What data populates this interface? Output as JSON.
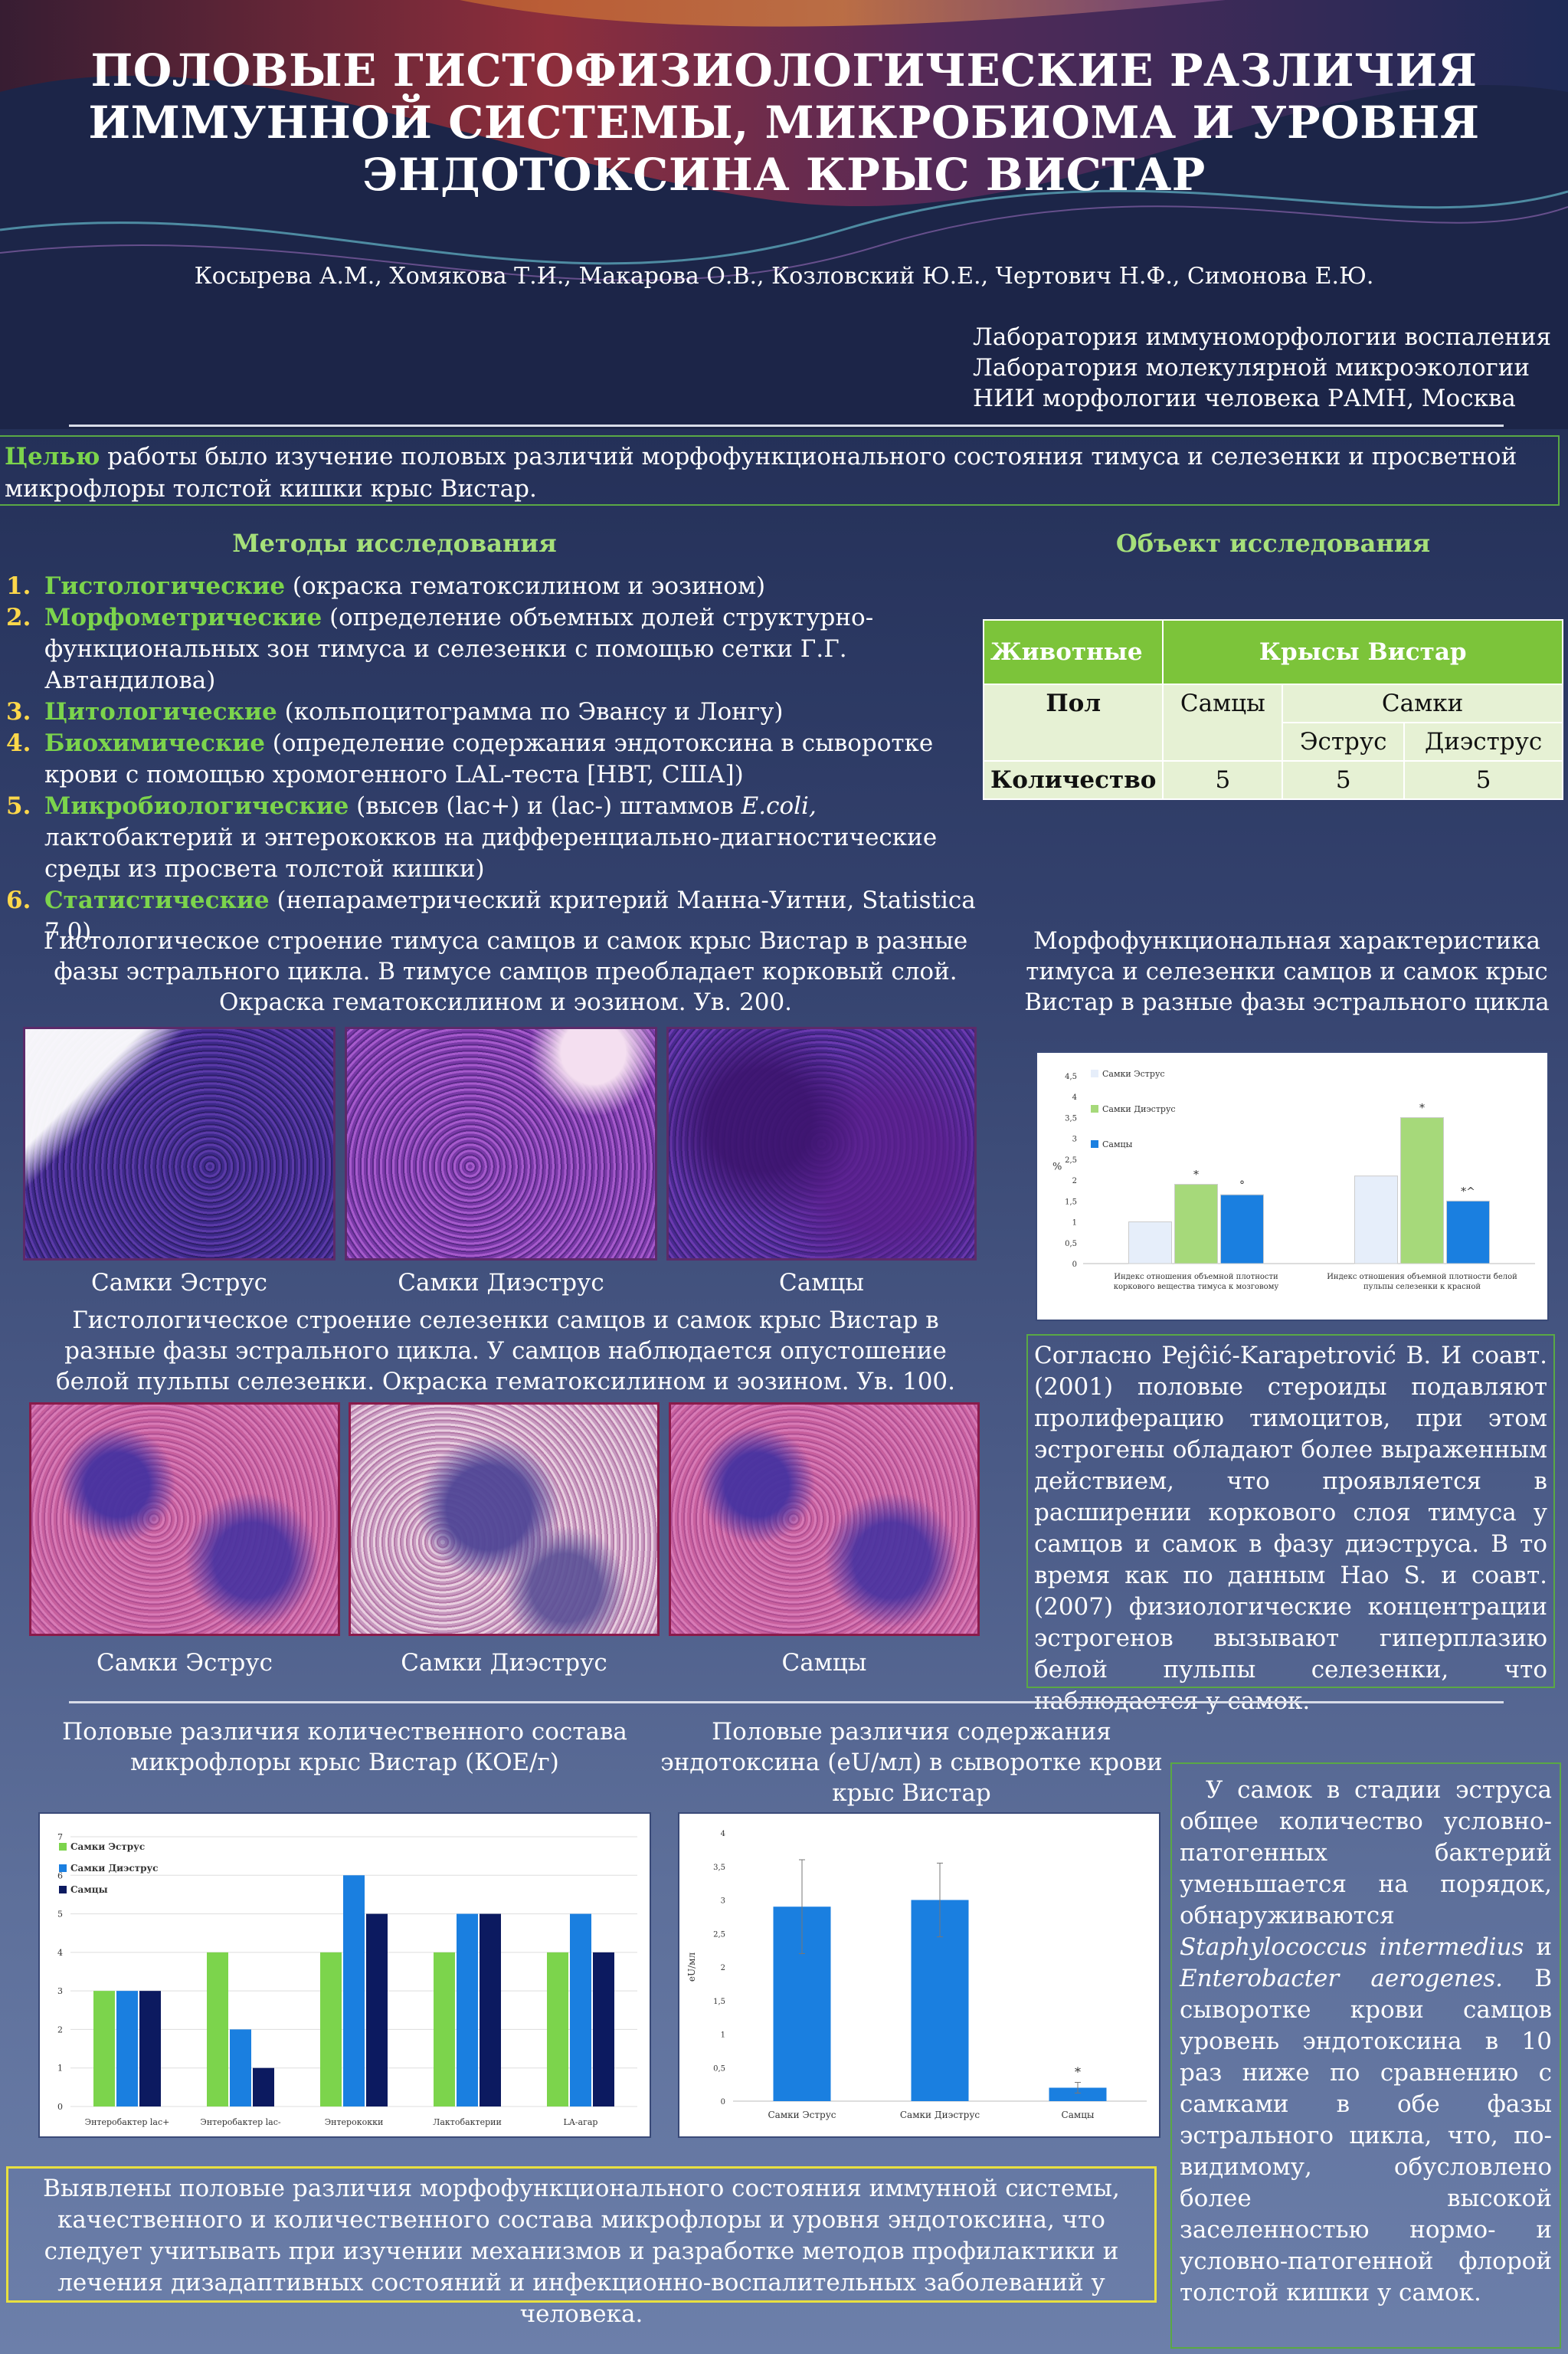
{
  "title": "ПОЛОВЫЕ ГИСТОФИЗИОЛОГИЧЕСКИЕ РАЗЛИЧИЯ ИММУННОЙ СИСТЕМЫ, МИКРОБИОМА И УРОВНЯ ЭНДОТОКСИНА КРЫС ВИСТАР",
  "authors": "Косырева А.М., Хомякова Т.И., Макарова О.В., Козловский Ю.Е., Чертович Н.Ф., Симонова Е.Ю.",
  "affiliations": [
    "Лаборатория иммуноморфологии воспаления",
    "Лаборатория молекулярной микроэкологии",
    "НИИ морфологии человека РАМН, Москва"
  ],
  "goal": {
    "lead": "Целью",
    "text": " работы было изучение половых различий морфофункционального состояния тимуса и селезенки и просветной микрофлоры толстой кишки крыс Вистар."
  },
  "methods": {
    "heading": "Методы исследования",
    "items": [
      {
        "num": "1.",
        "name": "Гистологические",
        "desc": " (окраска гематоксилином и эозином)"
      },
      {
        "num": "2.",
        "name": "Морфометрические",
        "desc": " (определение объемных долей структурно-функциональных зон тимуса и селезенки с помощью сетки Г.Г. Автандилова)"
      },
      {
        "num": "3.",
        "name": "Цитологические",
        "desc": " (кольпоцитограмма по Эвансу и Лонгу)"
      },
      {
        "num": "4.",
        "name": "Биохимические",
        "desc": " (определение содержания эндотоксина в сыворотке крови с помощью хромогенного LAL-теста [HBT, США])"
      },
      {
        "num": "5.",
        "name": "Микробиологические",
        "desc_pre": " (высев (lac+) и (lac-) штаммов ",
        "desc_italic": "E.coli,",
        "desc_post": "  лактобактерий и энтерококков на дифференциально-диагностические среды из просвета толстой кишки)"
      },
      {
        "num": "6.",
        "name": "Статистические",
        "desc": " (непараметрический критерий Манна-Уитни, Statistica 7.0)"
      }
    ]
  },
  "object": {
    "heading": "Объект исследования",
    "col_animals": "Животные",
    "col_rats": "Крысы Вистар",
    "row_sex": "Пол",
    "males": "Самцы",
    "females": "Самки",
    "estrus": "Эструс",
    "diestrus": "Диэструс",
    "row_count": "Количество",
    "counts": [
      "5",
      "5",
      "5"
    ]
  },
  "thymus": {
    "caption": "Гистологическое строение тимуса самцов и самок крыс Вистар в разные фазы эстрального цикла. В тимусе самцов преобладает корковый слой. Окраска гематоксилином и эозином. Ув. 200.",
    "labels": [
      "Самки Эструс",
      "Самки Диэструс",
      "Самцы"
    ]
  },
  "spleen": {
    "caption": "Гистологическое строение селезенки самцов и самок крыс Вистар в разные фазы эстрального цикла. У самцов наблюдается  опустошение белой пульпы селезенки. Окраска гематоксилином и эозином. Ув. 100.",
    "labels": [
      "Самки Эструс",
      "Самки Диэструс",
      "Самцы"
    ]
  },
  "morph_caption": "Морфофункциональная характеристика тимуса и селезенки самцов и самок крыс Вистар в разные фазы эстрального цикла",
  "discussion1": "Согласно Pejĉić-Karapetrović B. И соавт. (2001) половые стероиды подавляют пролиферацию тимоцитов, при этом эстрогены обладают более выраженным действием, что проявляется в расширении коркового слоя тимуса у самцов и самок в фазу диэструса.  В то время как по данным Hao S. и соавт. (2007) физиологические концентрации эстрогенов вызывают гиперплазию белой пульпы селезенки, что наблюдается у самок.",
  "micro_caption": "Половые различия количественного состава микрофлоры крыс Вистар (КОЕ/г)",
  "endo_caption": "Половые различия  содержания эндотоксина (eU/мл) в сыворотке крови крыс Вистар",
  "discussion2": {
    "p1": "У самок в стадии эструса общее количество условно-патогенных бактерий уменьшается на порядок, обнаруживаются ",
    "sp1": "Staphylococcus intermedius",
    "and": " и ",
    "sp2": "Enterobacter aerogenes.",
    "p2": " В сыворотке крови самцов уровень эндотоксина в 10 раз ниже по сравнению с самками в обе фазы эстрального цикла, что, по-видимому, обусловлено более высокой заселенностью нормо- и условно-патогенной флорой толстой кишки у самок."
  },
  "conclusion": "Выявлены половые различия морфофункционального состояния иммунной системы, качественного и количественного состава микрофлоры и уровня эндотоксина, что следует учитывать при изучении механизмов и разработке методов профилактики и лечения дизадаптивных состояний и инфекционно-воспалительных заболеваний у человека.",
  "colors": {
    "estrus": "#e6eefa",
    "diestrus": "#a6d97a",
    "males": "#1a7fe0",
    "micro_estrus": "#7cd44c",
    "micro_diestrus": "#1a7fe0",
    "micro_males": "#0c1a60",
    "endo": "#1a7fe0"
  },
  "chart_data": [
    {
      "type": "bar",
      "categories": [
        "Индекс отношения объемной плотности коркового вещества тимуса к мозговому",
        "Индекс отношения объемной плотности белой пульпы селезенки к красной"
      ],
      "series": [
        {
          "name": "Самки Эструс",
          "values": [
            1.0,
            2.1
          ]
        },
        {
          "name": "Самки Диэструс",
          "values": [
            1.9,
            3.5
          ]
        },
        {
          "name": "Самцы",
          "values": [
            1.65,
            1.5
          ]
        }
      ],
      "ylabel": "%",
      "ylim": [
        0,
        4.5
      ],
      "yticks": [
        "0",
        "0,5",
        "1",
        "1,5",
        "2",
        "2,5",
        "3",
        "3,5",
        "4",
        "4,5"
      ],
      "annotations": [
        "*",
        "°",
        "*",
        "*^"
      ],
      "legend": "top-left"
    },
    {
      "type": "bar",
      "categories": [
        "Энтеробактер lac+",
        "Энтеробактер lac-",
        "Энтерококки",
        "Лактобактерии",
        "LA-агар"
      ],
      "series": [
        {
          "name": "Самки  Эструс",
          "values": [
            3,
            4,
            4,
            4,
            4
          ]
        },
        {
          "name": "Самки Диэструс",
          "values": [
            3,
            2,
            6,
            5,
            5
          ]
        },
        {
          "name": "Самцы",
          "values": [
            3,
            1,
            5,
            5,
            4
          ]
        }
      ],
      "ylim": [
        0,
        7
      ],
      "yticks": [
        "0",
        "1",
        "2",
        "3",
        "4",
        "5",
        "6",
        "7"
      ],
      "legend": "top-left"
    },
    {
      "type": "bar",
      "categories": [
        "Самки  Эструс",
        "Самки Диэструс",
        "Самцы"
      ],
      "values": [
        2.9,
        3.0,
        0.2
      ],
      "errors": [
        0.7,
        0.55,
        0.08
      ],
      "ylabel": "eU/мл",
      "ylim": [
        0,
        4
      ],
      "yticks": [
        "0",
        "0,5",
        "1",
        "1,5",
        "2",
        "2,5",
        "3",
        "3,5",
        "4"
      ],
      "annotations": [
        "*"
      ]
    }
  ]
}
